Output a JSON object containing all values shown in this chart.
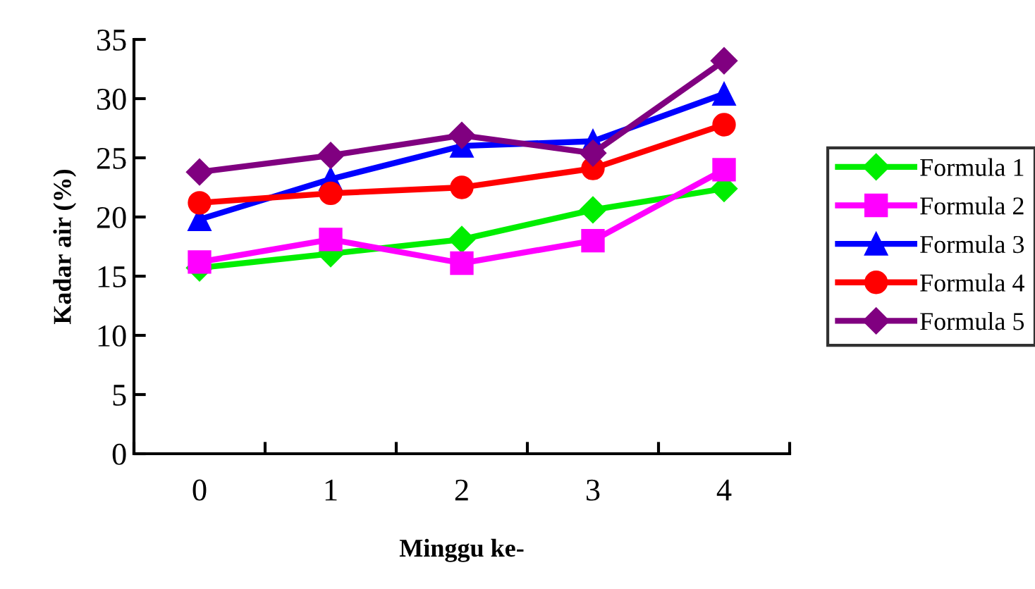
{
  "chart_data": {
    "type": "line",
    "xlabel": "Minggu ke-",
    "ylabel": "Kadar air (%)",
    "categories": [
      "0",
      "1",
      "2",
      "3",
      "4"
    ],
    "ylim": [
      0,
      35
    ],
    "yticks": [
      0,
      5,
      10,
      15,
      20,
      25,
      30,
      35
    ],
    "grid": false,
    "legend": "right",
    "line_style": "solid",
    "series": [
      {
        "name": "Formula 1",
        "color": "#00ee00",
        "marker": "diamond",
        "values": [
          15.7,
          16.9,
          18.1,
          20.6,
          22.4
        ]
      },
      {
        "name": "Formula 2",
        "color": "#ff00ff",
        "marker": "square",
        "values": [
          16.2,
          18.1,
          16.1,
          18.0,
          24.0
        ]
      },
      {
        "name": "Formula 3",
        "color": "#0000ff",
        "marker": "triangle",
        "values": [
          19.8,
          23.2,
          26.0,
          26.4,
          30.4
        ]
      },
      {
        "name": "Formula 4",
        "color": "#ff0000",
        "marker": "circle",
        "values": [
          21.2,
          22.0,
          22.5,
          24.1,
          27.8
        ]
      },
      {
        "name": "Formula 5",
        "color": "#800080",
        "marker": "diamond",
        "values": [
          23.8,
          25.2,
          26.9,
          25.4,
          33.2
        ]
      }
    ]
  }
}
